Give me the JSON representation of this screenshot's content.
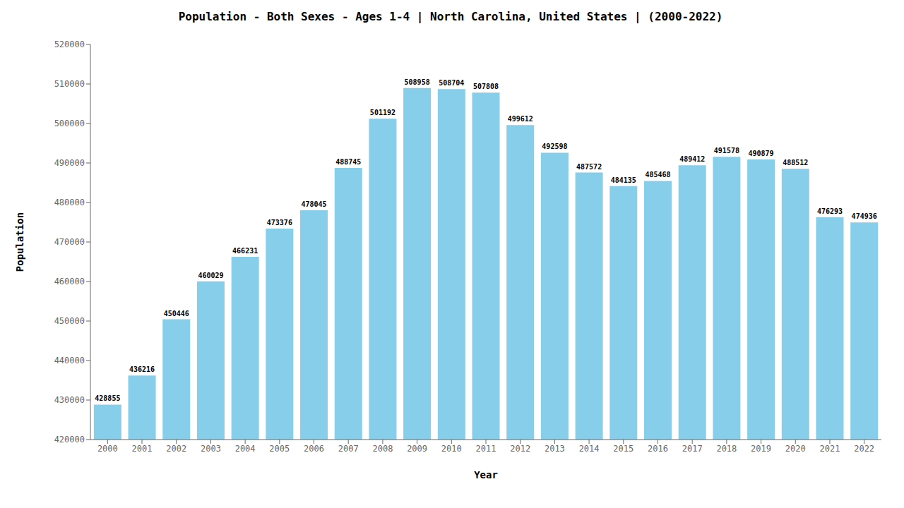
{
  "chart_data": {
    "type": "bar",
    "title": "Population - Both Sexes - Ages 1-4 | North Carolina, United States |  (2000-2022)",
    "xlabel": "Year",
    "ylabel": "Population",
    "categories": [
      "2000",
      "2001",
      "2002",
      "2003",
      "2004",
      "2005",
      "2006",
      "2007",
      "2008",
      "2009",
      "2010",
      "2011",
      "2012",
      "2013",
      "2014",
      "2015",
      "2016",
      "2017",
      "2018",
      "2019",
      "2020",
      "2021",
      "2022"
    ],
    "values": [
      428855,
      436216,
      450446,
      460029,
      466231,
      473376,
      478045,
      488745,
      501192,
      508958,
      508704,
      507808,
      499612,
      492598,
      487572,
      484135,
      485468,
      489412,
      491578,
      490879,
      488512,
      476293,
      474936
    ],
    "color": "#87CEEB",
    "ylim": [
      420000,
      520000
    ],
    "yticks": [
      420000,
      430000,
      440000,
      450000,
      460000,
      470000,
      480000,
      490000,
      500000,
      510000,
      520000
    ],
    "grid": false,
    "data_labels": true
  }
}
